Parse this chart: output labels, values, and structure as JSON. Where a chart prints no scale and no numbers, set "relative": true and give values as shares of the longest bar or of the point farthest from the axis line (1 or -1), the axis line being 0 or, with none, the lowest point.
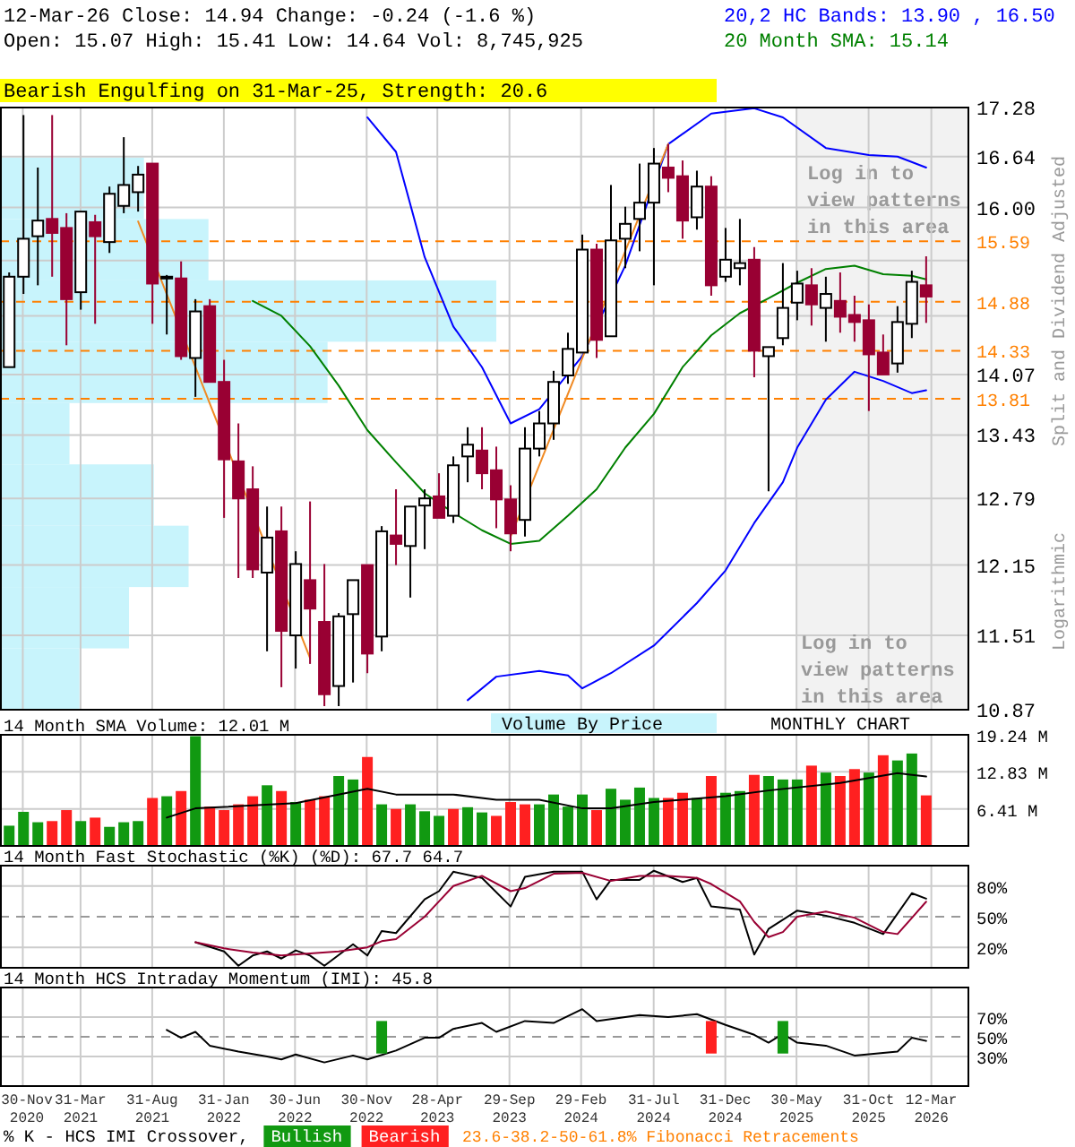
{
  "chart_data": [
    {
      "type": "candlestick",
      "title": "12-Mar-26   Close: 14.94   Change: -0.24 (-1.6 %)",
      "subtitle": "Open: 15.07    High: 15.41    Low: 14.64    Vol: 8,745,925",
      "ylabel": "Split and Dividend Adjusted",
      "annotations": [
        "Bearish Engulfing on 31-Mar-25, Strength: 20.6",
        "Log in to view patterns in this area",
        "Logarithmic",
        "23.6-38.2-50-61.8% Fibonacci Retracements"
      ],
      "x": [
        "2020-11",
        "2020-12",
        "2021-01",
        "2021-02",
        "2021-03",
        "2021-04",
        "2021-05",
        "2021-06",
        "2021-07",
        "2021-08",
        "2021-09",
        "2021-10",
        "2021-11",
        "2021-12",
        "2022-01",
        "2022-02",
        "2022-03",
        "2022-04",
        "2022-05",
        "2022-06",
        "2022-07",
        "2022-08",
        "2022-09",
        "2022-10",
        "2022-11",
        "2022-12",
        "2023-01",
        "2023-02",
        "2023-03",
        "2023-04",
        "2023-05",
        "2023-06",
        "2023-07",
        "2023-08",
        "2023-09",
        "2023-10",
        "2023-11",
        "2023-12",
        "2024-01",
        "2024-02",
        "2024-03",
        "2024-04",
        "2024-05",
        "2024-06",
        "2024-07",
        "2024-08",
        "2024-09",
        "2024-10",
        "2024-11",
        "2024-12",
        "2025-01",
        "2025-02",
        "2025-03",
        "2025-04",
        "2025-05",
        "2025-06",
        "2025-07",
        "2025-08",
        "2025-09",
        "2025-10",
        "2025-11",
        "2025-12",
        "2026-01",
        "2026-02",
        "2026-03"
      ],
      "ohlc": [
        [
          14.15,
          15.22,
          14.15,
          15.17
        ],
        [
          15.17,
          17.18,
          14.97,
          15.62
        ],
        [
          15.65,
          16.5,
          15.07,
          15.84
        ],
        [
          15.86,
          17.18,
          15.17,
          15.69
        ],
        [
          15.75,
          15.93,
          14.39,
          14.91
        ],
        [
          14.99,
          15.95,
          14.79,
          15.95
        ],
        [
          15.82,
          15.91,
          14.63,
          15.65
        ],
        [
          15.58,
          16.26,
          15.45,
          16.17
        ],
        [
          16.02,
          16.89,
          15.93,
          16.28
        ],
        [
          16.19,
          16.52,
          15.95,
          16.41
        ],
        [
          16.55,
          16.55,
          14.63,
          15.09
        ],
        [
          15.15,
          15.19,
          14.51,
          15.17
        ],
        [
          15.15,
          15.35,
          14.23,
          14.27
        ],
        [
          14.25,
          14.91,
          13.83,
          14.77
        ],
        [
          14.83,
          14.91,
          13.99,
          13.99
        ],
        [
          13.99,
          14.23,
          12.6,
          13.18
        ],
        [
          13.16,
          13.55,
          12.03,
          12.79
        ],
        [
          12.88,
          13.11,
          12.03,
          12.11
        ],
        [
          12.08,
          12.71,
          11.37,
          12.41
        ],
        [
          12.47,
          12.71,
          11.06,
          11.55
        ],
        [
          11.51,
          12.28,
          11.22,
          12.16
        ],
        [
          12.01,
          12.76,
          11.26,
          11.75
        ],
        [
          11.63,
          12.16,
          10.9,
          11.0
        ],
        [
          11.07,
          11.71,
          10.9,
          11.68
        ],
        [
          11.7,
          12.01,
          11.1,
          12.01
        ],
        [
          12.15,
          12.15,
          11.18,
          11.35
        ],
        [
          11.5,
          12.52,
          11.37,
          12.47
        ],
        [
          12.43,
          12.88,
          12.15,
          12.35
        ],
        [
          12.33,
          12.71,
          11.85,
          12.71
        ],
        [
          12.72,
          12.88,
          12.3,
          12.79
        ],
        [
          12.81,
          13.04,
          12.6,
          12.6
        ],
        [
          12.62,
          13.21,
          12.55,
          13.12
        ],
        [
          13.21,
          13.51,
          12.95,
          13.33
        ],
        [
          13.27,
          13.51,
          12.88,
          13.04
        ],
        [
          13.07,
          13.31,
          12.5,
          12.78
        ],
        [
          12.78,
          12.92,
          12.28,
          12.45
        ],
        [
          12.58,
          13.51,
          12.42,
          13.29
        ],
        [
          13.29,
          13.68,
          13.21,
          13.55
        ],
        [
          13.55,
          14.11,
          13.38,
          13.99
        ],
        [
          14.06,
          14.53,
          13.97,
          14.35
        ],
        [
          14.31,
          15.67,
          14.31,
          15.49
        ],
        [
          15.49,
          15.56,
          14.25,
          14.45
        ],
        [
          14.49,
          16.28,
          14.49,
          15.6
        ],
        [
          15.62,
          16.01,
          15.27,
          15.8
        ],
        [
          15.86,
          16.55,
          15.47,
          16.06
        ],
        [
          16.06,
          16.75,
          15.07,
          16.55
        ],
        [
          16.5,
          16.8,
          16.19,
          16.37
        ],
        [
          16.39,
          16.59,
          15.62,
          15.84
        ],
        [
          15.88,
          16.46,
          15.73,
          16.26
        ],
        [
          16.26,
          16.39,
          14.95,
          15.07
        ],
        [
          15.17,
          15.75,
          15.11,
          15.37
        ],
        [
          15.27,
          15.86,
          15.07,
          15.33
        ],
        [
          15.37,
          15.52,
          14.04,
          14.33
        ],
        [
          14.27,
          14.37,
          12.86,
          14.37
        ],
        [
          14.47,
          15.33,
          14.39,
          14.81
        ],
        [
          14.87,
          15.24,
          14.67,
          15.09
        ],
        [
          15.07,
          15.27,
          14.61,
          14.85
        ],
        [
          14.81,
          15.17,
          14.43,
          14.97
        ],
        [
          14.89,
          15.22,
          14.53,
          14.71
        ],
        [
          14.73,
          14.95,
          14.43,
          14.65
        ],
        [
          14.67,
          14.85,
          13.68,
          14.29
        ],
        [
          14.31,
          14.51,
          14.07,
          14.07
        ],
        [
          14.19,
          14.83,
          14.09,
          14.65
        ],
        [
          14.63,
          15.24,
          14.47,
          15.11
        ],
        [
          15.07,
          15.41,
          14.64,
          14.94
        ]
      ],
      "series": [
        {
          "type": "line",
          "name": "20,2 HC Bands: 13.90 , 16.50",
          "color": "#0000ff",
          "x": [
            "2022-12",
            "2023-02",
            "2023-04",
            "2023-06",
            "2023-08",
            "2023-10",
            "2023-12",
            "2024-03",
            "2024-06",
            "2024-09",
            "2024-12",
            "2025-03",
            "2025-05",
            "2025-08",
            "2025-11",
            "2026-01",
            "2026-03"
          ],
          "values": [
            17.15,
            16.7,
            15.4,
            14.6,
            14.15,
            13.55,
            13.7,
            14.27,
            15.3,
            16.8,
            17.2,
            17.27,
            17.15,
            16.75,
            16.66,
            16.64,
            16.5
          ]
        },
        {
          "type": "line",
          "color": "#0000ff",
          "x": [
            "2023-07",
            "2023-09",
            "2023-12",
            "2024-02",
            "2024-03",
            "2024-05",
            "2024-08",
            "2024-11",
            "2025-01",
            "2025-03",
            "2025-05",
            "2025-06",
            "2025-08",
            "2025-10",
            "2025-12",
            "2026-02",
            "2026-03"
          ],
          "values": [
            10.95,
            11.15,
            11.2,
            11.16,
            11.05,
            11.18,
            11.42,
            11.8,
            12.1,
            12.55,
            12.95,
            13.3,
            13.8,
            14.1,
            14.0,
            13.87,
            13.9
          ]
        },
        {
          "type": "line",
          "name": "20 Month SMA: 15.14",
          "color": "#008000",
          "x": [
            "2022-04",
            "2022-06",
            "2022-08",
            "2022-10",
            "2022-12",
            "2023-02",
            "2023-04",
            "2023-06",
            "2023-08",
            "2023-10",
            "2023-12",
            "2024-02",
            "2024-04",
            "2024-06",
            "2024-08",
            "2024-10",
            "2024-12",
            "2025-02",
            "2025-04",
            "2025-06",
            "2025-08",
            "2025-10",
            "2025-12",
            "2026-02",
            "2026-03"
          ],
          "values": [
            14.89,
            14.72,
            14.38,
            13.95,
            13.48,
            13.15,
            12.84,
            12.65,
            12.48,
            12.35,
            12.38,
            12.62,
            12.88,
            13.3,
            13.65,
            14.15,
            14.5,
            14.75,
            14.92,
            15.1,
            15.26,
            15.3,
            15.2,
            15.18,
            15.14
          ]
        },
        {
          "type": "line",
          "color": "#f08a24",
          "x": [
            "2021-08",
            "2022-08"
          ],
          "values": [
            15.83,
            11.31
          ]
        },
        {
          "type": "line",
          "color": "#f08a24",
          "x": [
            "2023-10",
            "2024-09"
          ],
          "values": [
            12.42,
            16.8
          ]
        }
      ],
      "ref_lines": [
        {
          "axis": "y",
          "value": 15.59,
          "label": "15.59",
          "color": "#ff8000",
          "line_style": "dashed"
        },
        {
          "axis": "y",
          "value": 14.88,
          "label": "14.88",
          "color": "#ff8000",
          "line_style": "dashed"
        },
        {
          "axis": "y",
          "value": 14.33,
          "label": "14.33",
          "color": "#ff8000",
          "line_style": "dashed"
        },
        {
          "axis": "y",
          "value": 13.81,
          "label": "13.81",
          "color": "#ff8000",
          "line_style": "dashed"
        }
      ],
      "bands": [
        {
          "axis": "x",
          "from": "2025-05-30",
          "to": "2026-05-28",
          "color": "#f2f2f2",
          "label": "Log in to view patterns in this area"
        }
      ],
      "xlim": [
        "2020-10-12",
        "2026-05-28"
      ],
      "xticks": [
        {
          "value": "2020-11-30",
          "label": null
        },
        {
          "value": "2021-03-31",
          "label": null
        },
        {
          "value": "2021-08-31",
          "label": null
        },
        {
          "value": "2022-01-31",
          "label": null
        },
        {
          "value": "2022-06-30",
          "label": null
        },
        {
          "value": "2022-11-30",
          "label": null
        },
        {
          "value": "2023-04-28",
          "label": null
        },
        {
          "value": "2023-09-29",
          "label": null
        },
        {
          "value": "2024-02-29",
          "label": null
        },
        {
          "value": "2024-07-31",
          "label": null
        },
        {
          "value": "2024-12-31",
          "label": null
        },
        {
          "value": "2025-05-30",
          "label": null
        },
        {
          "value": "2025-10-31",
          "label": null
        },
        {
          "value": "2026-03-12",
          "label": null
        }
      ],
      "ylim": [
        10.87,
        17.28
      ],
      "log": true,
      "yticks": [
        10.87,
        11.51,
        12.15,
        12.79,
        13.43,
        14.07,
        {
          "value": 14.72,
          "label": null
        },
        {
          "value": 15.36,
          "label": null
        },
        {
          "value": 16,
          "label": "16.00"
        },
        16.64,
        17.28
      ],
      "grid": true,
      "tick_labels": "y",
      "legend": "top right"
    },
    {
      "type": "bar",
      "orientation": "horizontal",
      "relative": true,
      "categories": [
        null,
        null,
        null,
        null,
        null,
        null,
        null,
        null,
        null
      ],
      "values": [
        0.29,
        0.42,
        1,
        0.66,
        0.14,
        0.31,
        0.38,
        0.26,
        0.16
      ],
      "color": "#c8f4fc",
      "tick_labels": false
    },
    {
      "type": "bar",
      "title": "14 Month SMA Volume: 12.01 M",
      "annotations": [
        "Volume By Price",
        "MONTHLY CHART"
      ],
      "x": [
        "2020-11",
        "2020-12",
        "2021-01",
        "2021-02",
        "2021-03",
        "2021-04",
        "2021-05",
        "2021-06",
        "2021-07",
        "2021-08",
        "2021-09",
        "2021-10",
        "2021-11",
        "2021-12",
        "2022-01",
        "2022-02",
        "2022-03",
        "2022-04",
        "2022-05",
        "2022-06",
        "2022-07",
        "2022-08",
        "2022-09",
        "2022-10",
        "2022-11",
        "2022-12",
        "2023-01",
        "2023-02",
        "2023-03",
        "2023-04",
        "2023-05",
        "2023-06",
        "2023-07",
        "2023-08",
        "2023-09",
        "2023-10",
        "2023-11",
        "2023-12",
        "2024-01",
        "2024-02",
        "2024-03",
        "2024-04",
        "2024-05",
        "2024-06",
        "2024-07",
        "2024-08",
        "2024-09",
        "2024-10",
        "2024-11",
        "2024-12",
        "2025-01",
        "2025-02",
        "2025-03",
        "2025-04",
        "2025-05",
        "2025-06",
        "2025-07",
        "2025-08",
        "2025-09",
        "2025-10",
        "2025-11",
        "2025-12",
        "2026-01",
        "2026-02",
        "2026-03"
      ],
      "series": [
        {
          "type": "bar",
          "values": [
            3.5,
            5.9,
            4.1,
            4.3,
            6.2,
            4.3,
            4.9,
            3.3,
            4.1,
            4.3,
            8.3,
            8.6,
            9.5,
            19.0,
            6.8,
            6.2,
            7.2,
            8.6,
            10.5,
            9.5,
            7.6,
            8.0,
            8.6,
            12.1,
            11.5,
            15.4,
            7.2,
            6.4,
            7.2,
            6.0,
            5.2,
            6.4,
            6.7,
            5.8,
            5.2,
            7.6,
            7.2,
            7.2,
            8.9,
            6.8,
            8.9,
            6.2,
            9.9,
            8.0,
            10.1,
            8.3,
            8.3,
            9.2,
            8.3,
            12.1,
            9.2,
            9.5,
            12.3,
            12.1,
            11.5,
            11.5,
            13.9,
            12.7,
            12.1,
            13.3,
            12.7,
            15.7,
            14.8,
            16.0,
            8.75
          ],
          "colors": [
            "#119911",
            "#119911",
            "#119911",
            "#ff2020",
            "#ff2020",
            "#119911",
            "#ff2020",
            "#119911",
            "#119911",
            "#119911",
            "#ff2020",
            "#119911",
            "#ff2020",
            "#119911",
            "#ff2020",
            "#ff2020",
            "#ff2020",
            "#ff2020",
            "#119911",
            "#ff2020",
            "#119911",
            "#ff2020",
            "#ff2020",
            "#119911",
            "#119911",
            "#ff2020",
            "#119911",
            "#ff2020",
            "#119911",
            "#119911",
            "#119911",
            "#ff2020",
            "#119911",
            "#119911",
            "#ff2020",
            "#ff2020",
            "#ff2020",
            "#119911",
            "#119911",
            "#119911",
            "#119911",
            "#ff2020",
            "#119911",
            "#119911",
            "#119911",
            "#119911",
            "#ff2020",
            "#ff2020",
            "#119911",
            "#ff2020",
            "#119911",
            "#119911",
            "#ff2020",
            "#119911",
            "#119911",
            "#119911",
            "#ff2020",
            "#119911",
            "#ff2020",
            "#ff2020",
            "#119911",
            "#ff2020",
            "#119911",
            "#119911",
            "#ff2020"
          ]
        },
        {
          "type": "line",
          "color": "#000000",
          "x": [
            "2021-10",
            "2021-12",
            "2022-07",
            "2022-12",
            "2023-02",
            "2023-06",
            "2023-09",
            "2023-12",
            "2024-03",
            "2024-05",
            "2024-08",
            "2025-01",
            "2025-04",
            "2025-09",
            "2026-01",
            "2026-03"
          ],
          "values": [
            4.9,
            6.5,
            7.4,
            9.9,
            8.9,
            8.9,
            8.0,
            8.0,
            6.5,
            6.5,
            7.6,
            8.6,
            9.6,
            10.9,
            12.6,
            12.01
          ]
        }
      ],
      "xlim": [
        "2020-10-12",
        "2026-05-28"
      ],
      "xticks": [
        {
          "value": "2020-11-30",
          "label": null
        },
        {
          "value": "2021-03-31",
          "label": null
        },
        {
          "value": "2021-08-31",
          "label": null
        },
        {
          "value": "2022-01-31",
          "label": null
        },
        {
          "value": "2022-06-30",
          "label": null
        },
        {
          "value": "2022-11-30",
          "label": null
        },
        {
          "value": "2023-04-28",
          "label": null
        },
        {
          "value": "2023-09-29",
          "label": null
        },
        {
          "value": "2024-02-29",
          "label": null
        },
        {
          "value": "2024-07-31",
          "label": null
        },
        {
          "value": "2024-12-31",
          "label": null
        },
        {
          "value": "2025-05-30",
          "label": null
        },
        {
          "value": "2025-10-31",
          "label": null
        },
        {
          "value": "2026-03-12",
          "label": null
        }
      ],
      "ylim": [
        0,
        19.24
      ],
      "yticks": [
        {
          "value": 6.41,
          "label": "6.41 M"
        },
        {
          "value": 12.83,
          "label": "12.83 M"
        },
        {
          "value": 19.24,
          "label": "19.24 M"
        }
      ],
      "grid": true,
      "tick_labels": "y"
    },
    {
      "type": "line",
      "title": "14 Month Fast Stochastic (%K) (%D): 67.7  64.7",
      "series": [
        {
          "color": "#000000",
          "x": [
            "2021-12",
            "2022-02",
            "2022-03",
            "2022-04",
            "2022-05",
            "2022-06",
            "2022-07",
            "2022-08",
            "2022-09",
            "2022-11",
            "2022-12",
            "2023-01",
            "2023-02",
            "2023-04",
            "2023-05",
            "2023-06",
            "2023-08",
            "2023-10",
            "2023-11",
            "2024-01",
            "2024-03",
            "2024-04",
            "2024-05",
            "2024-07",
            "2024-08",
            "2024-10",
            "2024-11",
            "2024-12",
            "2025-02",
            "2025-03",
            "2025-04",
            "2025-06",
            "2025-08",
            "2025-10",
            "2025-12",
            "2026-02",
            "2026-03"
          ],
          "values": [
            25,
            16,
            2,
            12,
            16,
            9,
            17,
            12,
            2,
            23,
            12,
            36,
            34,
            67,
            75,
            94,
            88,
            60,
            89,
            94,
            94,
            67,
            86,
            86,
            95,
            84,
            88,
            60,
            57,
            13,
            38,
            56,
            51,
            44,
            33,
            73,
            67.7
          ]
        },
        {
          "color": "#990033",
          "x": [
            "2021-12",
            "2022-02",
            "2022-04",
            "2022-06",
            "2022-08",
            "2022-10",
            "2022-12",
            "2023-01",
            "2023-02",
            "2023-04",
            "2023-05",
            "2023-06",
            "2023-08",
            "2023-10",
            "2023-11",
            "2024-01",
            "2024-03",
            "2024-05",
            "2024-07",
            "2024-09",
            "2024-11",
            "2024-12",
            "2025-02",
            "2025-03",
            "2025-04",
            "2025-05",
            "2025-06",
            "2025-08",
            "2025-10",
            "2025-12",
            "2026-01",
            "2026-03"
          ],
          "values": [
            25,
            19,
            15,
            12,
            14,
            16,
            20,
            26,
            28,
            50,
            65,
            80,
            90,
            75,
            78,
            92,
            93,
            85,
            90,
            90,
            88,
            82,
            65,
            45,
            30,
            35,
            50,
            55,
            49,
            35,
            33,
            64.7
          ]
        }
      ],
      "ref_lines": [
        {
          "axis": "y",
          "value": 50,
          "color": "#999999",
          "line_style": "dashed"
        }
      ],
      "xlim": [
        "2020-10-12",
        "2026-05-28"
      ],
      "xticks": [
        {
          "value": "2020-11-30",
          "label": null
        },
        {
          "value": "2021-03-31",
          "label": null
        },
        {
          "value": "2021-08-31",
          "label": null
        },
        {
          "value": "2022-01-31",
          "label": null
        },
        {
          "value": "2022-06-30",
          "label": null
        },
        {
          "value": "2022-11-30",
          "label": null
        },
        {
          "value": "2023-04-28",
          "label": null
        },
        {
          "value": "2023-09-29",
          "label": null
        },
        {
          "value": "2024-02-29",
          "label": null
        },
        {
          "value": "2024-07-31",
          "label": null
        },
        {
          "value": "2024-12-31",
          "label": null
        },
        {
          "value": "2025-05-30",
          "label": null
        },
        {
          "value": "2025-10-31",
          "label": null
        },
        {
          "value": "2026-03-12",
          "label": null
        }
      ],
      "ylim": [
        0,
        100
      ],
      "yticks": [
        {
          "value": 20,
          "label": "20%"
        },
        {
          "value": 50,
          "label": "50%"
        },
        {
          "value": 80,
          "label": "80%"
        }
      ],
      "grid": true,
      "tick_labels": "y"
    },
    {
      "type": "line",
      "title": "14 Month HCS Intraday Momentum (IMI): 45.8",
      "legend": "bottom left",
      "legend_title": "% K - HCS IMI Crossover,",
      "series": [
        {
          "color": "#000000",
          "x": [
            "2021-10",
            "2021-11",
            "2021-12",
            "2022-01",
            "2022-03",
            "2022-05",
            "2022-06",
            "2022-07",
            "2022-09",
            "2022-11",
            "2022-12",
            "2023-02",
            "2023-04",
            "2023-05",
            "2023-06",
            "2023-08",
            "2023-09",
            "2023-11",
            "2024-01",
            "2024-03",
            "2024-04",
            "2024-07",
            "2024-09",
            "2024-11",
            "2025-01",
            "2025-03",
            "2025-04",
            "2025-05",
            "2025-06",
            "2025-08",
            "2025-10",
            "2026-01",
            "2026-02",
            "2026-03"
          ],
          "values": [
            57,
            49,
            55,
            41,
            35,
            30,
            27,
            32,
            24,
            31,
            27,
            36,
            49,
            49,
            58,
            64,
            55,
            66,
            64,
            78,
            66,
            72,
            70,
            73,
            62,
            52,
            44,
            53,
            44,
            41,
            31,
            35,
            49,
            45.8
          ]
        },
        {
          "type": "bar",
          "name": "Bullish",
          "color": "#119911",
          "x": [
            "2023-01",
            "2025-05"
          ],
          "base": [
            33,
            33
          ],
          "values": [
            33,
            33
          ]
        },
        {
          "type": "bar",
          "name": "Bearish",
          "color": "#ff2020",
          "x": [
            "2024-12"
          ],
          "base": [
            33
          ],
          "values": [
            33
          ]
        }
      ],
      "ref_lines": [
        {
          "axis": "y",
          "value": 50,
          "color": "#999999",
          "line_style": "dashed"
        }
      ],
      "xlim": [
        "2020-10-12",
        "2026-05-28"
      ],
      "xticks": [
        {
          "value": "2020-11-30",
          "label": "30-Nov 2020"
        },
        {
          "value": "2021-03-31",
          "label": "31-Mar 2021"
        },
        {
          "value": "2021-08-31",
          "label": "31-Aug 2021"
        },
        {
          "value": "2022-01-31",
          "label": "31-Jan 2022"
        },
        {
          "value": "2022-06-30",
          "label": "30-Jun 2022"
        },
        {
          "value": "2022-11-30",
          "label": "30-Nov 2022"
        },
        {
          "value": "2023-04-28",
          "label": "28-Apr 2023"
        },
        {
          "value": "2023-09-29",
          "label": "29-Sep 2023"
        },
        {
          "value": "2024-02-29",
          "label": "29-Feb 2024"
        },
        {
          "value": "2024-07-31",
          "label": "31-Jul 2024"
        },
        {
          "value": "2024-12-31",
          "label": "31-Dec 2024"
        },
        {
          "value": "2025-05-30",
          "label": "30-May 2025"
        },
        {
          "value": "2025-10-31",
          "label": "31-Oct 2025"
        },
        {
          "value": "2026-03-12",
          "label": "12-Mar 2026"
        }
      ],
      "ylim": [
        0,
        100
      ],
      "yticks": [
        {
          "value": 30,
          "label": "30%"
        },
        {
          "value": 50,
          "label": "50%"
        },
        {
          "value": 70,
          "label": "70%"
        }
      ],
      "grid": true
    }
  ]
}
